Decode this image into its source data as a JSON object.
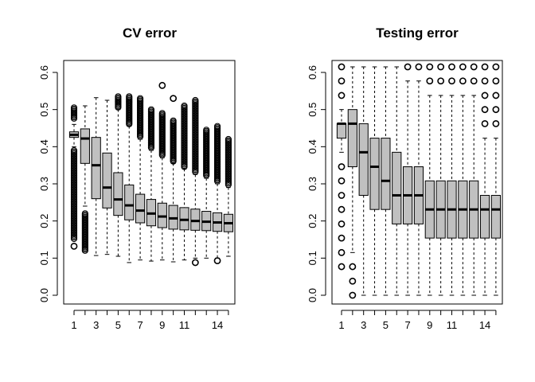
{
  "chart_data": [
    {
      "type": "boxplot",
      "title": "CV error",
      "xlabel": "",
      "ylabel": "",
      "ylim": [
        0,
        0.6
      ],
      "y_ticks": [
        "0.0",
        "0.1",
        "0.2",
        "0.3",
        "0.4",
        "0.5",
        "0.6"
      ],
      "x_tick_labels": [
        "1",
        "3",
        "5",
        "7",
        "9",
        "11",
        "14"
      ],
      "box_color": "#c0c0c0",
      "boxes": [
        {
          "x": 1,
          "whisker_low": 0.4,
          "q1": 0.425,
          "median": 0.432,
          "q3": 0.44,
          "whisker_high": 0.46
        },
        {
          "x": 2,
          "whisker_low": 0.24,
          "q1": 0.355,
          "median": 0.422,
          "q3": 0.448,
          "whisker_high": 0.51
        },
        {
          "x": 3,
          "whisker_low": 0.107,
          "q1": 0.26,
          "median": 0.35,
          "q3": 0.425,
          "whisker_high": 0.532
        },
        {
          "x": 4,
          "whisker_low": 0.11,
          "q1": 0.235,
          "median": 0.29,
          "q3": 0.383,
          "whisker_high": 0.525
        },
        {
          "x": 5,
          "whisker_low": 0.105,
          "q1": 0.215,
          "median": 0.258,
          "q3": 0.33,
          "whisker_high": 0.5
        },
        {
          "x": 6,
          "whisker_low": 0.088,
          "q1": 0.203,
          "median": 0.242,
          "q3": 0.297,
          "whisker_high": 0.455
        },
        {
          "x": 7,
          "whisker_low": 0.095,
          "q1": 0.195,
          "median": 0.228,
          "q3": 0.272,
          "whisker_high": 0.42
        },
        {
          "x": 8,
          "whisker_low": 0.092,
          "q1": 0.187,
          "median": 0.22,
          "q3": 0.258,
          "whisker_high": 0.39
        },
        {
          "x": 9,
          "whisker_low": 0.095,
          "q1": 0.182,
          "median": 0.212,
          "q3": 0.248,
          "whisker_high": 0.37
        },
        {
          "x": 10,
          "whisker_low": 0.09,
          "q1": 0.178,
          "median": 0.207,
          "q3": 0.242,
          "whisker_high": 0.355
        },
        {
          "x": 11,
          "whisker_low": 0.095,
          "q1": 0.176,
          "median": 0.203,
          "q3": 0.236,
          "whisker_high": 0.34
        },
        {
          "x": 12,
          "whisker_low": 0.1,
          "q1": 0.175,
          "median": 0.2,
          "q3": 0.232,
          "whisker_high": 0.325
        },
        {
          "x": 13,
          "whisker_low": 0.1,
          "q1": 0.174,
          "median": 0.198,
          "q3": 0.226,
          "whisker_high": 0.315
        },
        {
          "x": 14,
          "whisker_low": 0.1,
          "q1": 0.172,
          "median": 0.196,
          "q3": 0.222,
          "whisker_high": 0.3
        },
        {
          "x": 15,
          "whisker_low": 0.105,
          "q1": 0.171,
          "median": 0.194,
          "q3": 0.218,
          "whisker_high": 0.29
        }
      ],
      "outlier_bands": [
        {
          "x": 1,
          "from": 0.15,
          "to": 0.39
        },
        {
          "x": 1,
          "from": 0.475,
          "to": 0.505
        },
        {
          "x": 2,
          "from": 0.12,
          "to": 0.22
        },
        {
          "x": 5,
          "from": 0.505,
          "to": 0.535
        },
        {
          "x": 6,
          "from": 0.46,
          "to": 0.535
        },
        {
          "x": 7,
          "from": 0.425,
          "to": 0.53
        },
        {
          "x": 8,
          "from": 0.395,
          "to": 0.5
        },
        {
          "x": 9,
          "from": 0.375,
          "to": 0.49
        },
        {
          "x": 10,
          "from": 0.36,
          "to": 0.47
        },
        {
          "x": 11,
          "from": 0.345,
          "to": 0.51
        },
        {
          "x": 12,
          "from": 0.33,
          "to": 0.525
        },
        {
          "x": 13,
          "from": 0.32,
          "to": 0.445
        },
        {
          "x": 14,
          "from": 0.305,
          "to": 0.455
        },
        {
          "x": 15,
          "from": 0.295,
          "to": 0.42
        }
      ],
      "outliers": [
        {
          "x": 1,
          "y": 0.132
        },
        {
          "x": 9,
          "y": 0.565
        },
        {
          "x": 10,
          "y": 0.53
        },
        {
          "x": 12,
          "y": 0.088
        },
        {
          "x": 14,
          "y": 0.093
        }
      ]
    },
    {
      "type": "boxplot",
      "title": "Testing error",
      "xlabel": "",
      "ylabel": "",
      "ylim": [
        0,
        0.6
      ],
      "y_ticks": [
        "0.0",
        "0.1",
        "0.2",
        "0.3",
        "0.4",
        "0.5",
        "0.6"
      ],
      "x_tick_labels": [
        "1",
        "3",
        "5",
        "7",
        "9",
        "11",
        "14"
      ],
      "box_color": "#c0c0c0",
      "boxes": [
        {
          "x": 1,
          "whisker_low": 0.385,
          "q1": 0.423,
          "median": 0.462,
          "q3": 0.462,
          "whisker_high": 0.5
        },
        {
          "x": 2,
          "whisker_low": 0.115,
          "q1": 0.346,
          "median": 0.462,
          "q3": 0.5,
          "whisker_high": 0.615
        },
        {
          "x": 3,
          "whisker_low": 0.0,
          "q1": 0.269,
          "median": 0.385,
          "q3": 0.462,
          "whisker_high": 0.615
        },
        {
          "x": 4,
          "whisker_low": 0.0,
          "q1": 0.231,
          "median": 0.346,
          "q3": 0.423,
          "whisker_high": 0.615
        },
        {
          "x": 5,
          "whisker_low": 0.0,
          "q1": 0.231,
          "median": 0.308,
          "q3": 0.423,
          "whisker_high": 0.615
        },
        {
          "x": 6,
          "whisker_low": 0.0,
          "q1": 0.192,
          "median": 0.269,
          "q3": 0.385,
          "whisker_high": 0.615
        },
        {
          "x": 7,
          "whisker_low": 0.0,
          "q1": 0.192,
          "median": 0.269,
          "q3": 0.346,
          "whisker_high": 0.577
        },
        {
          "x": 8,
          "whisker_low": 0.0,
          "q1": 0.192,
          "median": 0.269,
          "q3": 0.346,
          "whisker_high": 0.577
        },
        {
          "x": 9,
          "whisker_low": 0.0,
          "q1": 0.154,
          "median": 0.231,
          "q3": 0.308,
          "whisker_high": 0.538
        },
        {
          "x": 10,
          "whisker_low": 0.0,
          "q1": 0.154,
          "median": 0.231,
          "q3": 0.308,
          "whisker_high": 0.538
        },
        {
          "x": 11,
          "whisker_low": 0.0,
          "q1": 0.154,
          "median": 0.231,
          "q3": 0.308,
          "whisker_high": 0.538
        },
        {
          "x": 12,
          "whisker_low": 0.0,
          "q1": 0.154,
          "median": 0.231,
          "q3": 0.308,
          "whisker_high": 0.538
        },
        {
          "x": 13,
          "whisker_low": 0.0,
          "q1": 0.154,
          "median": 0.231,
          "q3": 0.308,
          "whisker_high": 0.538
        },
        {
          "x": 14,
          "whisker_low": 0.0,
          "q1": 0.154,
          "median": 0.231,
          "q3": 0.269,
          "whisker_high": 0.423
        },
        {
          "x": 15,
          "whisker_low": 0.0,
          "q1": 0.154,
          "median": 0.231,
          "q3": 0.269,
          "whisker_high": 0.423
        }
      ],
      "outlier_bands": [],
      "outliers": [
        {
          "x": 1,
          "y": 0.077
        },
        {
          "x": 1,
          "y": 0.115
        },
        {
          "x": 1,
          "y": 0.154
        },
        {
          "x": 1,
          "y": 0.192
        },
        {
          "x": 1,
          "y": 0.231
        },
        {
          "x": 1,
          "y": 0.269
        },
        {
          "x": 1,
          "y": 0.308
        },
        {
          "x": 1,
          "y": 0.346
        },
        {
          "x": 1,
          "y": 0.538
        },
        {
          "x": 1,
          "y": 0.577
        },
        {
          "x": 1,
          "y": 0.615
        },
        {
          "x": 2,
          "y": 0.0
        },
        {
          "x": 2,
          "y": 0.038
        },
        {
          "x": 2,
          "y": 0.077
        },
        {
          "x": 7,
          "y": 0.615
        },
        {
          "x": 8,
          "y": 0.615
        },
        {
          "x": 9,
          "y": 0.577
        },
        {
          "x": 9,
          "y": 0.615
        },
        {
          "x": 10,
          "y": 0.577
        },
        {
          "x": 10,
          "y": 0.615
        },
        {
          "x": 11,
          "y": 0.577
        },
        {
          "x": 11,
          "y": 0.615
        },
        {
          "x": 12,
          "y": 0.577
        },
        {
          "x": 12,
          "y": 0.615
        },
        {
          "x": 13,
          "y": 0.577
        },
        {
          "x": 13,
          "y": 0.615
        },
        {
          "x": 14,
          "y": 0.462
        },
        {
          "x": 14,
          "y": 0.5
        },
        {
          "x": 14,
          "y": 0.538
        },
        {
          "x": 14,
          "y": 0.577
        },
        {
          "x": 14,
          "y": 0.615
        },
        {
          "x": 15,
          "y": 0.462
        },
        {
          "x": 15,
          "y": 0.5
        },
        {
          "x": 15,
          "y": 0.538
        },
        {
          "x": 15,
          "y": 0.577
        },
        {
          "x": 15,
          "y": 0.615
        }
      ]
    }
  ]
}
